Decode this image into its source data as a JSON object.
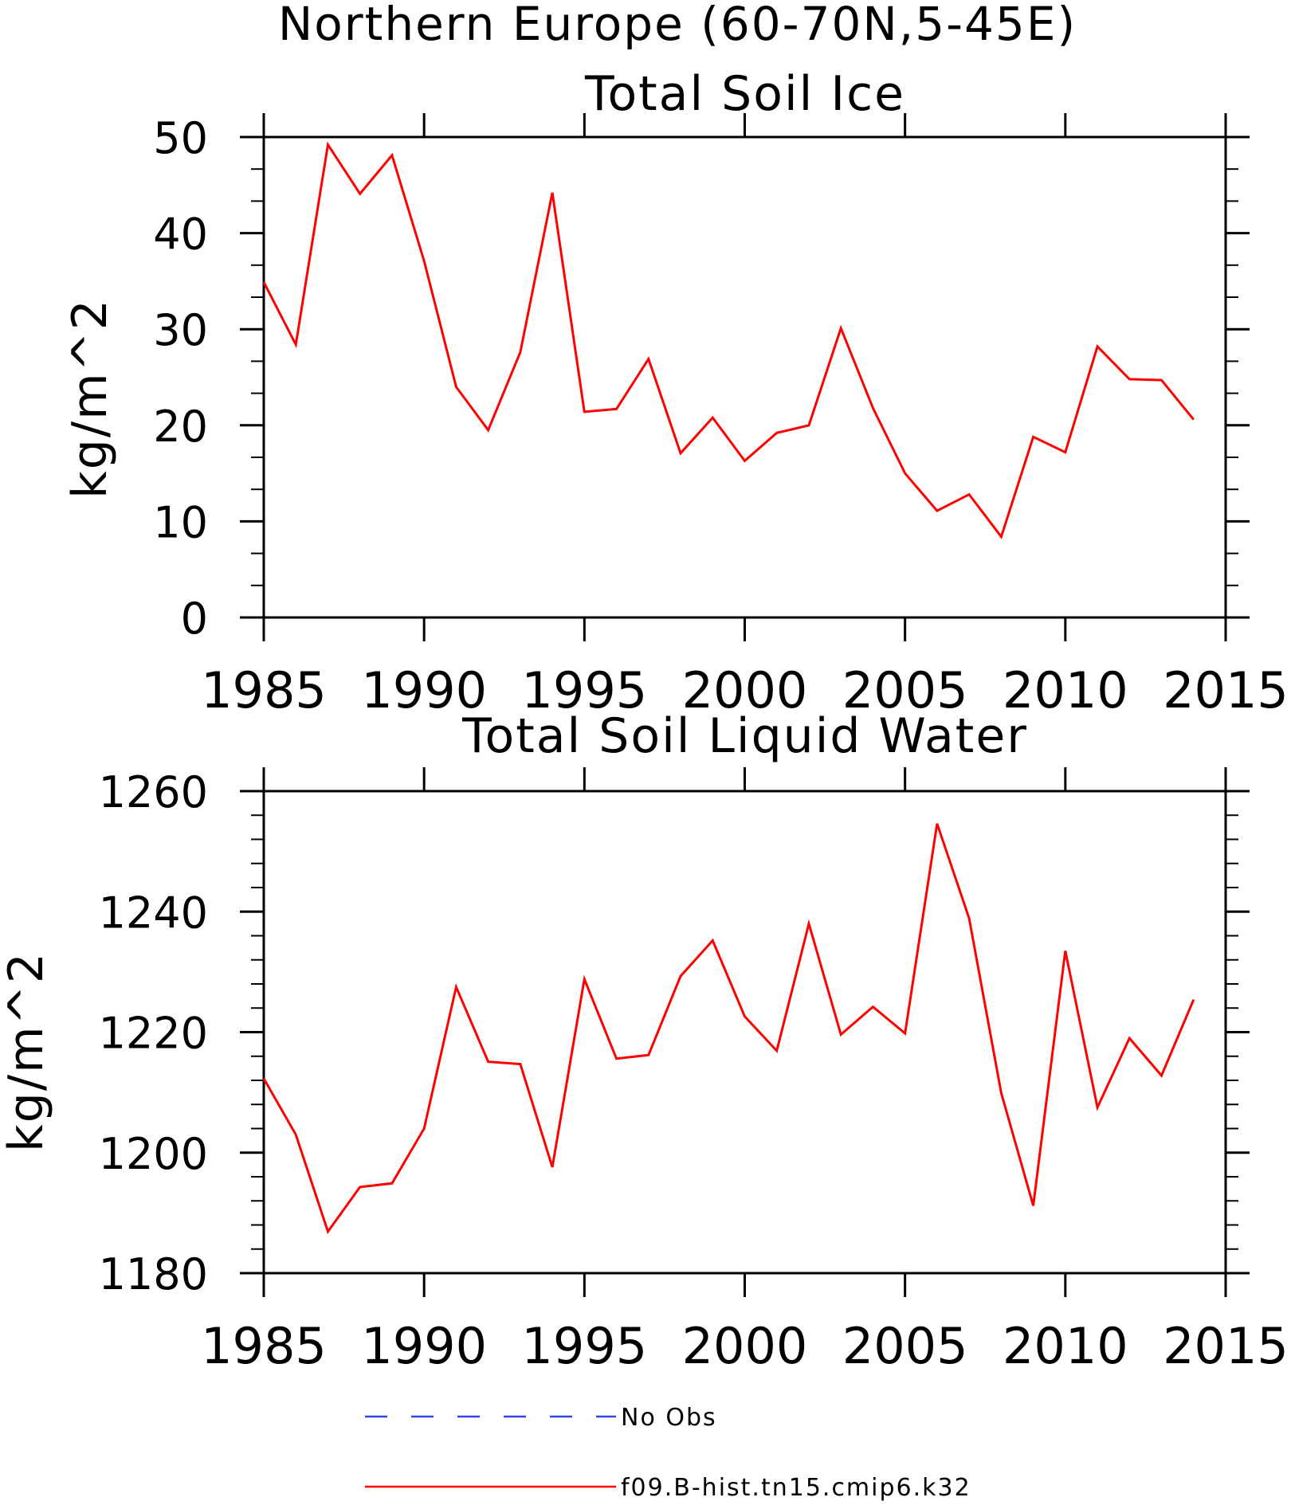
{
  "figure": {
    "title": "Northern Europe (60-70N,5-45E)"
  },
  "legend": {
    "placement": "bottom",
    "items": [
      {
        "label": "No Obs",
        "color": "#3344ee",
        "style": "dashed"
      },
      {
        "label": "f09.B-hist.tn15.cmip6.k32",
        "color": "#ff0000",
        "style": "solid"
      }
    ]
  },
  "chart_data": [
    {
      "type": "line",
      "title": "Total Soil Ice",
      "xlabel": "",
      "ylabel": "kg/m^2",
      "xlim": [
        1985,
        2015
      ],
      "ylim": [
        0,
        50
      ],
      "xticks": [
        1985,
        1990,
        1995,
        2000,
        2005,
        2010,
        2015
      ],
      "yticks": [
        0,
        10,
        20,
        30,
        40,
        50
      ],
      "yminor": 2,
      "grid": false,
      "series": [
        {
          "name": "f09.B-hist.tn15.cmip6.k32",
          "color": "#ff0000",
          "x": [
            1985,
            1986,
            1987,
            1988,
            1989,
            1990,
            1991,
            1992,
            1993,
            1994,
            1995,
            1996,
            1997,
            1998,
            1999,
            2000,
            2001,
            2002,
            2003,
            2004,
            2005,
            2006,
            2007,
            2008,
            2009,
            2010,
            2011,
            2012,
            2013,
            2014
          ],
          "y": [
            34.9,
            28.4,
            49.2,
            44.1,
            48.1,
            37.1,
            24.0,
            19.5,
            27.6,
            44.2,
            21.4,
            21.7,
            26.9,
            17.1,
            20.8,
            16.3,
            19.2,
            20.0,
            30.1,
            21.8,
            15.0,
            11.1,
            12.8,
            8.4,
            18.8,
            17.2,
            28.2,
            24.8,
            24.7,
            20.6
          ]
        }
      ]
    },
    {
      "type": "line",
      "title": "Total Soil Liquid Water",
      "xlabel": "",
      "ylabel": "kg/m^2",
      "xlim": [
        1985,
        2015
      ],
      "ylim": [
        1180,
        1260
      ],
      "xticks": [
        1985,
        1990,
        1995,
        2000,
        2005,
        2010,
        2015
      ],
      "yticks": [
        1180,
        1200,
        1220,
        1240,
        1260
      ],
      "yminor": 4,
      "grid": false,
      "series": [
        {
          "name": "f09.B-hist.tn15.cmip6.k32",
          "color": "#ff0000",
          "x": [
            1985,
            1986,
            1987,
            1988,
            1989,
            1990,
            1991,
            1992,
            1993,
            1994,
            1995,
            1996,
            1997,
            1998,
            1999,
            2000,
            2001,
            2002,
            2003,
            2004,
            2005,
            2006,
            2007,
            2008,
            2009,
            2010,
            2011,
            2012,
            2013,
            2014
          ],
          "y": [
            1212.3,
            1203.0,
            1186.9,
            1194.3,
            1194.9,
            1204.0,
            1227.5,
            1215.1,
            1214.7,
            1197.6,
            1228.8,
            1215.6,
            1216.2,
            1229.3,
            1235.2,
            1222.6,
            1216.9,
            1238.0,
            1219.6,
            1224.2,
            1219.8,
            1254.6,
            1238.9,
            1209.9,
            1191.2,
            1233.5,
            1207.5,
            1219.0,
            1212.8,
            1225.4
          ]
        }
      ]
    }
  ]
}
